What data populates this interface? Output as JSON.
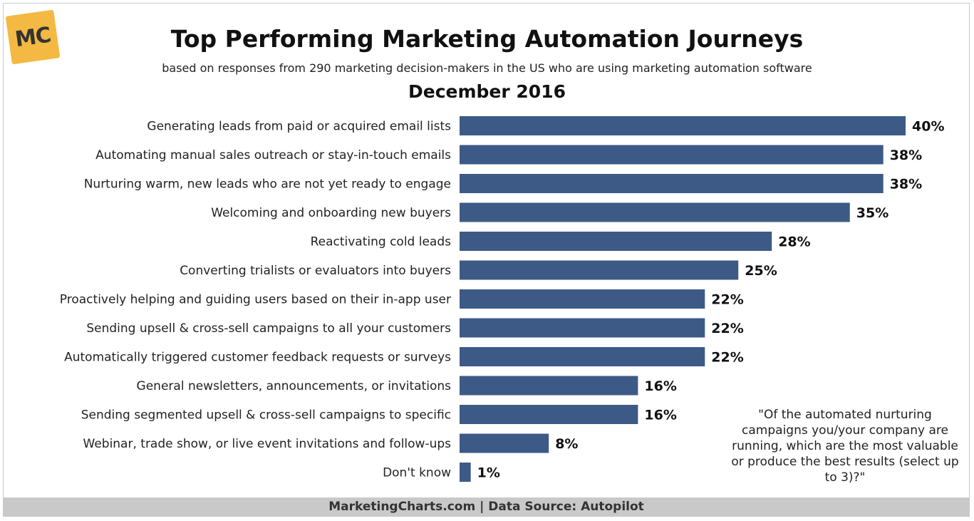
{
  "logo": {
    "text": "MC",
    "color": "#f4b942"
  },
  "header": {
    "title": "Top Performing Marketing Automation Journeys",
    "subtitle": "based on responses from 290 marketing decision-makers in the US who are using marketing automation software",
    "date": "December 2016"
  },
  "note": "\"Of the automated nurturing campaigns you/your company are running, which are the most valuable or produce the best results (select up to 3)?\"",
  "footer": "MarketingCharts.com | Data Source: Autopilot",
  "colors": {
    "bar": "#3d5a87",
    "footer_bg": "#c9c9c9"
  },
  "chart_data": {
    "type": "bar",
    "orientation": "horizontal",
    "title": "Top Performing Marketing Automation Journeys",
    "categories": [
      "Generating leads from paid or acquired email lists",
      "Automating manual sales outreach or stay-in-touch emails",
      "Nurturing warm, new leads who are not yet ready to engage",
      "Welcoming and onboarding new buyers",
      "Reactivating cold leads",
      "Converting trialists or evaluators into buyers",
      "Proactively helping and guiding users based on their in-app user",
      "Sending upsell & cross-sell campaigns to all your customers",
      "Automatically triggered customer feedback requests or surveys",
      "General newsletters, announcements, or invitations",
      "Sending segmented upsell & cross-sell campaigns to specific",
      "Webinar, trade show, or live event invitations and follow-ups",
      "Don't know"
    ],
    "values": [
      40,
      38,
      38,
      35,
      28,
      25,
      22,
      22,
      22,
      16,
      16,
      8,
      1
    ],
    "value_labels": [
      "40%",
      "38%",
      "38%",
      "35%",
      "28%",
      "25%",
      "22%",
      "22%",
      "22%",
      "16%",
      "16%",
      "8%",
      "1%"
    ],
    "xlim": [
      0,
      40
    ],
    "unit": "%",
    "grid": false,
    "legend": "none"
  }
}
